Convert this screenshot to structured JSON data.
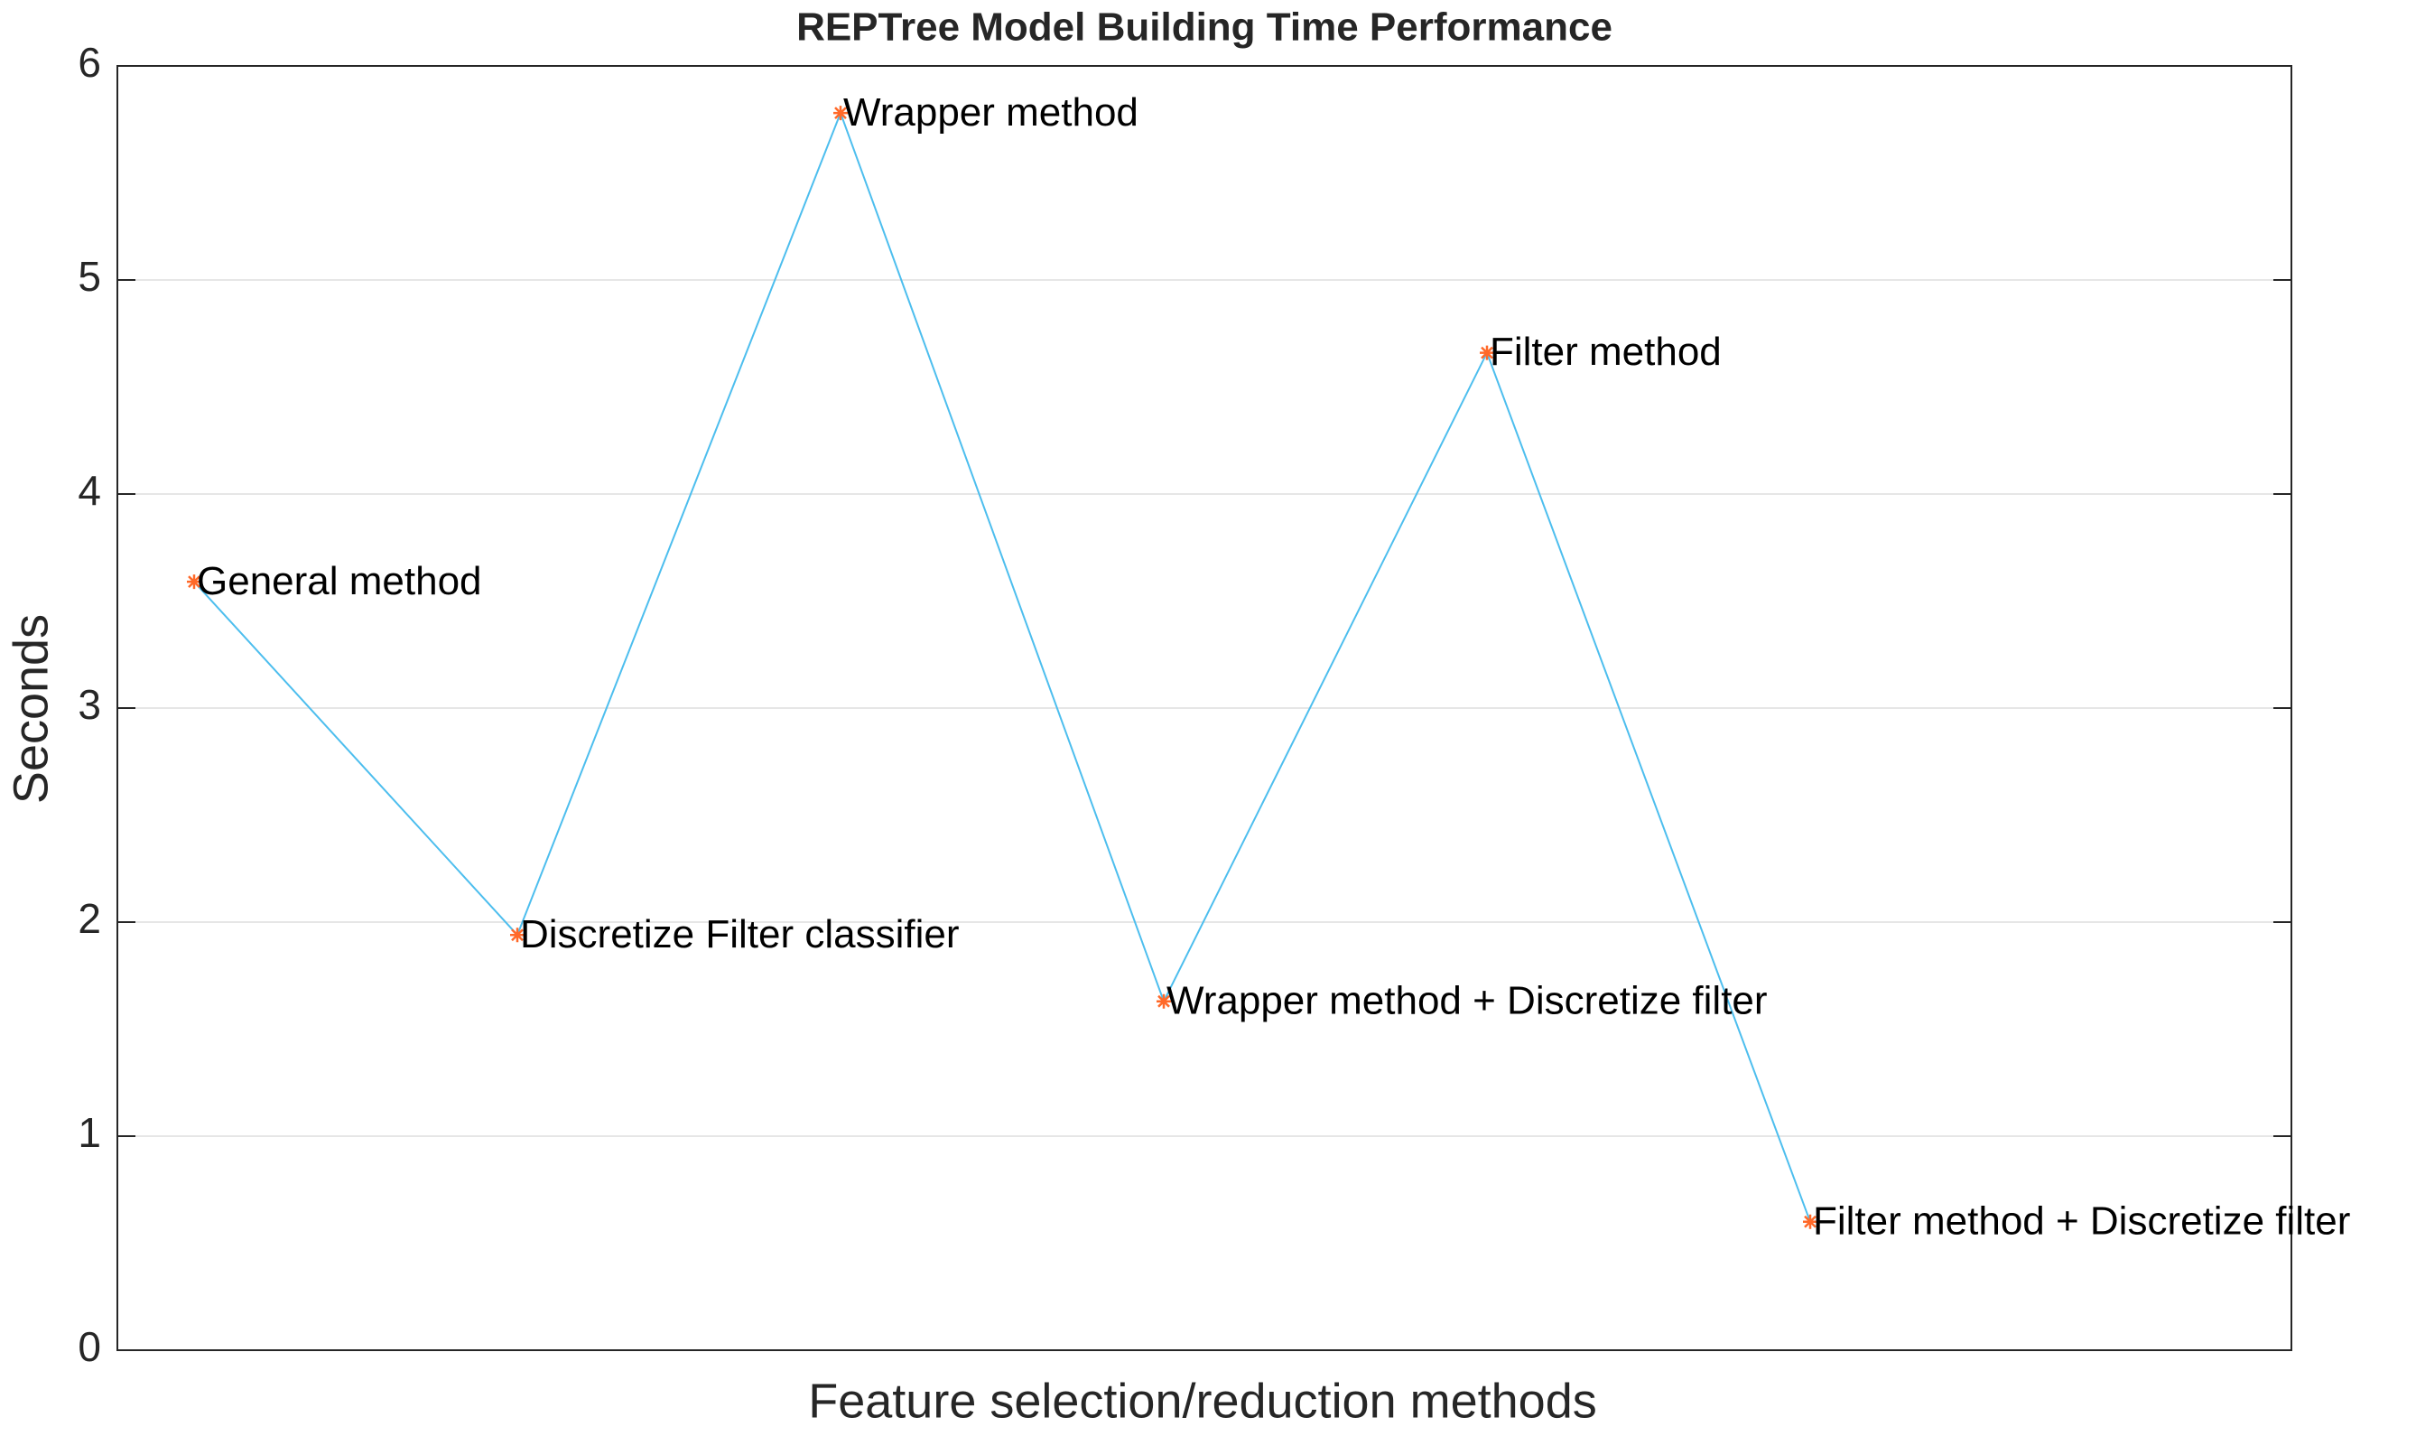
{
  "chart_data": {
    "type": "line",
    "title": "REPTree Model Building Time Performance",
    "x_label": "Feature selection/reduction methods",
    "y_label": "Seconds",
    "categories": [
      "General method",
      "Discretize Filter classifier",
      "Wrapper method",
      "Wrapper method + Discretize filter",
      "Filter method",
      "Filter method + Discretize filter"
    ],
    "values": [
      3.59,
      1.94,
      5.78,
      1.63,
      4.66,
      0.6
    ],
    "color": "#4dbeee",
    "marker_color": "#ff6929",
    "ylim": [
      0,
      6
    ],
    "yticks": [
      0,
      1,
      2,
      3,
      4,
      5,
      6
    ],
    "grid": true
  }
}
